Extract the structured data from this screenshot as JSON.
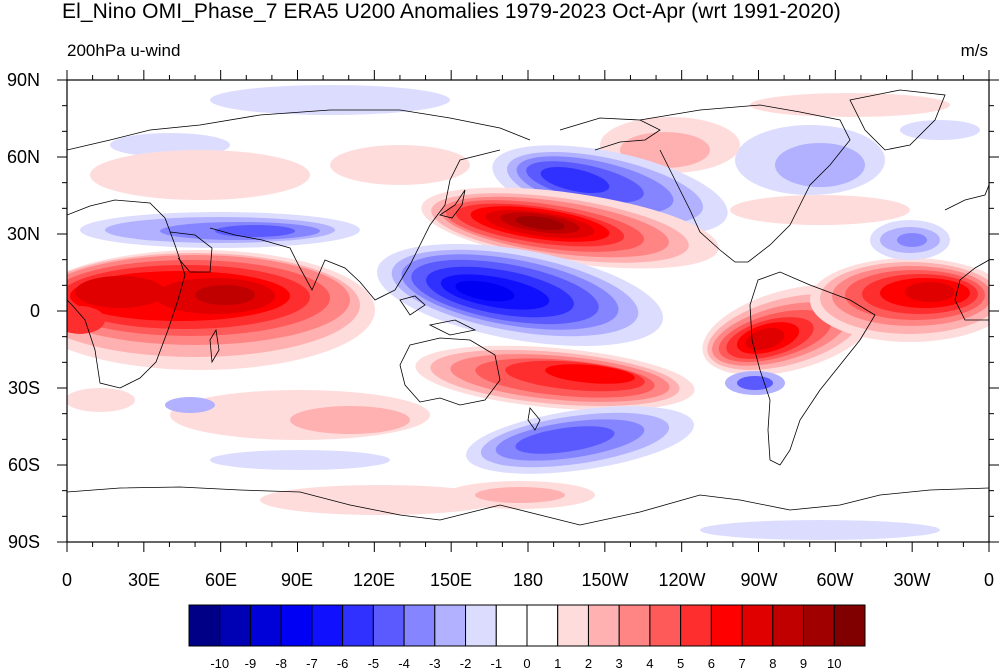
{
  "title": "El_Nino OMI_Phase_7 ERA5 U200 Anomalies 1979-2023 Oct-Apr (wrt 1991-2020)",
  "left_string": "200hPa u-wind",
  "right_string": "m/s",
  "lat_labels": [
    "90N",
    "60N",
    "30N",
    "0",
    "30S",
    "60S",
    "90S"
  ],
  "lon_labels": [
    "0",
    "30E",
    "60E",
    "90E",
    "120E",
    "150E",
    "180",
    "150W",
    "120W",
    "90W",
    "60W",
    "30W",
    "0"
  ],
  "colorbar": {
    "levels": [
      "-10",
      "-9",
      "-8",
      "-7",
      "-6",
      "-5",
      "-4",
      "-3",
      "-2",
      "-1",
      "0",
      "1",
      "2",
      "3",
      "4",
      "5",
      "6",
      "7",
      "8",
      "9",
      "10"
    ],
    "colors": [
      "#000087",
      "#0000b4",
      "#0000d8",
      "#0000f4",
      "#1010ff",
      "#3030ff",
      "#5a5aff",
      "#8585ff",
      "#b1b1ff",
      "#dcdcff",
      "#ffffff",
      "#ffffff",
      "#ffdcdc",
      "#ffb1b1",
      "#ff8585",
      "#ff5a5a",
      "#ff2e2e",
      "#ff0000",
      "#e00000",
      "#c00000",
      "#a00000",
      "#800000"
    ]
  },
  "map": {
    "projection": "cylindrical-equidistant",
    "center_longitude": 180,
    "field": "200hPa u-wind anomaly"
  }
}
